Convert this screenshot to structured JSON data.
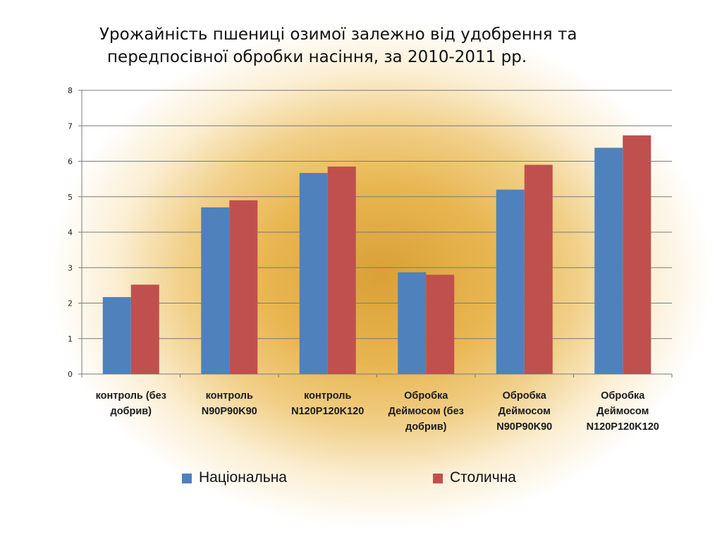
{
  "chart_data": {
    "type": "bar",
    "title": [
      "Урожайність пшениці озимої залежно від удобрення та",
      "передпосівної обробки насіння, за 2010-2011 рр."
    ],
    "categories": [
      "контроль (без добрив)",
      "контроль N90P90K90",
      "контроль N120P120K120",
      "Обробка Деймосом (без добрив)",
      "Обробка Деймосом N90P90K90",
      "Обробка Деймосом N120P120K120"
    ],
    "series": [
      {
        "name": "Національна",
        "color": "#4f81bd",
        "values": [
          2.17,
          4.7,
          5.67,
          2.87,
          5.2,
          6.38
        ]
      },
      {
        "name": "Столична",
        "color": "#c0504d",
        "values": [
          2.52,
          4.9,
          5.85,
          2.8,
          5.9,
          6.73
        ]
      }
    ],
    "ylim": [
      0,
      8
    ],
    "yticks": [
      0,
      1,
      2,
      3,
      4,
      5,
      6,
      7,
      8
    ],
    "grid": true,
    "legend": "bottom"
  }
}
